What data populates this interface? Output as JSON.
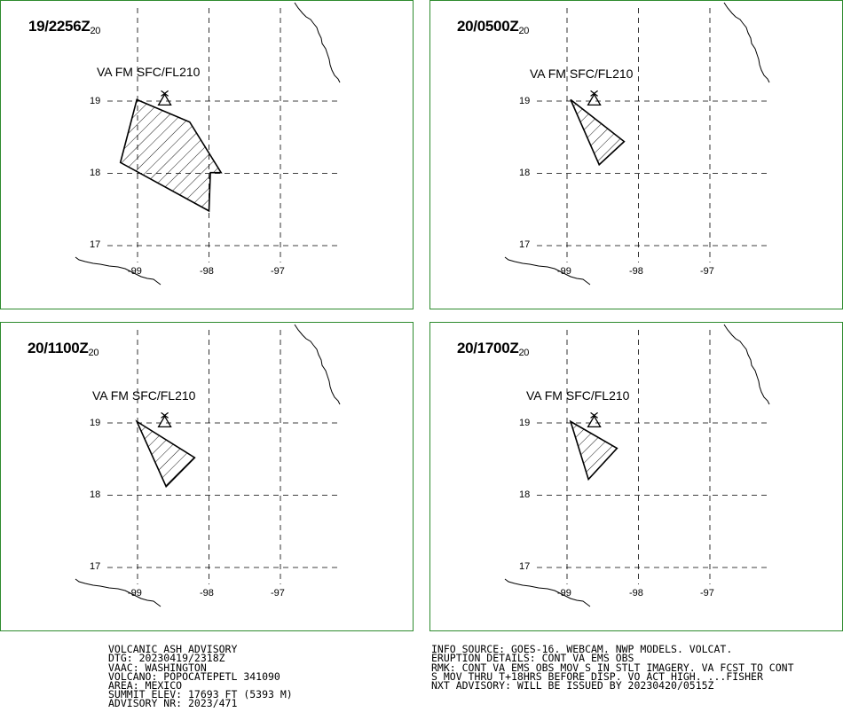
{
  "panels": [
    {
      "valid_time": "19/2256",
      "suffix": "Z",
      "sub": "20",
      "level": "VA FM SFC/FL210",
      "polygon": [
        [
          -99.01,
          19.02
        ],
        [
          -98.27,
          18.71
        ],
        [
          -97.83,
          18.01
        ],
        [
          -97.98,
          18.01
        ],
        [
          -98.0,
          17.48
        ],
        [
          -99.24,
          18.15
        ]
      ]
    },
    {
      "valid_time": "20/0500",
      "suffix": "Z",
      "sub": "20",
      "level": "VA FM SFC/FL210",
      "polygon": [
        [
          -98.95,
          19.02
        ],
        [
          -98.2,
          18.44
        ],
        [
          -98.55,
          18.12
        ]
      ]
    },
    {
      "valid_time": "20/1100",
      "suffix": "Z",
      "sub": "20",
      "level": "VA FM SFC/FL210",
      "polygon": [
        [
          -99.01,
          19.02
        ],
        [
          -98.2,
          18.52
        ],
        [
          -98.6,
          18.12
        ]
      ]
    },
    {
      "valid_time": "20/1700",
      "suffix": "Z",
      "sub": "20",
      "level": "VA FM SFC/FL210",
      "polygon": [
        [
          -98.95,
          19.02
        ],
        [
          -98.3,
          18.65
        ],
        [
          -98.7,
          18.22
        ]
      ]
    }
  ],
  "map": {
    "lat_labels": [
      "19",
      "18",
      "17"
    ],
    "lon_labels": [
      "-99",
      "-98",
      "-97"
    ],
    "lats": [
      19,
      18,
      17
    ],
    "lons": [
      -99,
      -98,
      -97
    ],
    "volcano": {
      "lon": -98.62,
      "lat": 19.02
    },
    "frame_color": "#2e8b2e"
  },
  "advisory_left": [
    "VOLCANIC ASH ADVISORY",
    "DTG: 20230419/2318Z",
    "VAAC: WASHINGTON",
    "VOLCANO: POPOCATEPETL 341090",
    "AREA: MEXICO",
    "SUMMIT ELEV: 17693 FT (5393 M)",
    "ADVISORY NR: 2023/471"
  ],
  "advisory_right": [
    "INFO SOURCE: GOES-16. WEBCAM. NWP MODELS. VOLCAT.",
    "ERUPTION DETAILS: CONT VA EMS OBS",
    "RMK: CONT VA EMS OBS MOV S IN STLT IMAGERY. VA FCST TO CONT",
    "S MOV THRU T+18HRS BEFORE DISP. VO ACT HIGH. ...FISHER",
    "NXT ADVISORY: WILL BE ISSUED BY 20230420/0515Z"
  ]
}
